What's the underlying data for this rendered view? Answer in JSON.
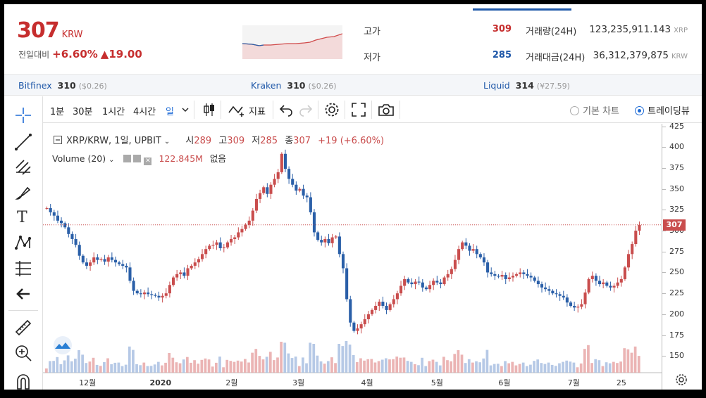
{
  "ticker": {
    "price": "307",
    "currency": "KRW",
    "change_label": "전일대비",
    "change_pct": "+6.60%",
    "change_amt": "▲19.00"
  },
  "stats": {
    "high_label": "고가",
    "high": "309",
    "low_label": "저가",
    "low": "285",
    "volume_label": "거래량(24H)",
    "volume": "123,235,911.143",
    "volume_unit": "XRP",
    "value_label": "거래대금(24H)",
    "value": "36,312,379,875",
    "value_unit": "KRW"
  },
  "exchanges": [
    {
      "name": "Bitfinex",
      "price": "310",
      "sub": "($0.26)"
    },
    {
      "name": "Kraken",
      "price": "310",
      "sub": "($0.26)"
    },
    {
      "name": "Liquid",
      "price": "314",
      "sub": "(¥27.59)"
    }
  ],
  "toolbar": {
    "intervals": [
      "1분",
      "30분",
      "1시간",
      "4시간",
      "일"
    ],
    "indicator_label": "지표",
    "basic_chart": "기본 차트",
    "trading_view": "트레이딩뷰"
  },
  "legend": {
    "symbol": "XRP/KRW, 1일, UPBIT",
    "open_label": "시",
    "open": "289",
    "high_label": "고",
    "high": "309",
    "low_label": "저",
    "low": "285",
    "close_label": "종",
    "close": "307",
    "change": "+19 (+6.60%)",
    "volume_label": "Volume (20)",
    "volume_value": "122.845M",
    "volume_extra": "없음"
  },
  "colors": {
    "up": "#c94d4d",
    "down": "#2a5fa8",
    "accent": "#1e6bd6",
    "price_red": "#c62e2e"
  },
  "chart_data": {
    "type": "candlestick",
    "x_tick_labels": [
      "12월",
      "2020",
      "2월",
      "3월",
      "4월",
      "5월",
      "6월",
      "7월",
      "25"
    ],
    "y_tick_labels": [
      "425",
      "400",
      "375",
      "350",
      "325",
      "300",
      "275",
      "250",
      "225",
      "200",
      "175",
      "150"
    ],
    "ylim": [
      130,
      428
    ],
    "current_price": 307,
    "close_series": [
      327,
      322,
      318,
      312,
      309,
      304,
      296,
      290,
      283,
      270,
      262,
      258,
      262,
      268,
      265,
      266,
      263,
      268,
      265,
      262,
      260,
      258,
      256,
      240,
      228,
      225,
      224,
      226,
      224,
      223,
      222,
      220,
      222,
      225,
      235,
      244,
      248,
      250,
      246,
      255,
      258,
      262,
      266,
      272,
      278,
      282,
      283,
      286,
      279,
      280,
      286,
      290,
      292,
      298,
      302,
      307,
      312,
      324,
      338,
      345,
      352,
      344,
      355,
      362,
      370,
      392,
      374,
      362,
      355,
      348,
      350,
      342,
      340,
      322,
      298,
      289,
      286,
      290,
      285,
      292,
      293,
      272,
      255,
      218,
      190,
      180,
      183,
      188,
      194,
      200,
      205,
      210,
      215,
      210,
      205,
      212,
      218,
      225,
      234,
      242,
      238,
      236,
      239,
      238,
      232,
      230,
      235,
      240,
      238,
      236,
      244,
      248,
      254,
      265,
      278,
      286,
      282,
      276,
      278,
      272,
      268,
      262,
      250,
      248,
      246,
      245,
      247,
      242,
      244,
      246,
      248,
      250,
      248,
      246,
      244,
      240,
      236,
      232,
      230,
      228,
      225,
      224,
      222,
      220,
      214,
      210,
      208,
      209,
      212,
      226,
      242,
      246,
      240,
      236,
      238,
      234,
      232,
      234,
      238,
      242,
      256,
      272,
      284,
      300,
      307
    ]
  }
}
